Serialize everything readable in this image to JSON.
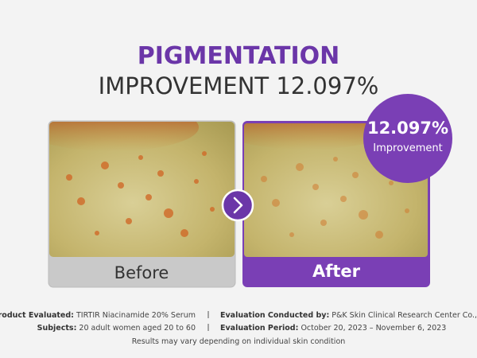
{
  "header": {
    "title": "PIGMENTATION",
    "subtitle": "IMPROVEMENT 12.097%"
  },
  "panels": [
    {
      "label": "Before"
    },
    {
      "label": "After"
    }
  ],
  "badge": {
    "value": "12.097%",
    "label": "Improvement"
  },
  "footer": {
    "rows": [
      [
        {
          "label": "Product Evaluated:",
          "text": "TIRTIR Niacinamide 20% Serum"
        },
        {
          "label": "Evaluation Conducted by:",
          "text": "P&K Skin Clinical Research Center Co., Ltd."
        }
      ],
      [
        {
          "label": "Subjects:",
          "text": "20 adult women aged 20 to 60"
        },
        {
          "label": "Evaluation Period:",
          "text": "October 20, 2023 – November 6, 2023"
        }
      ]
    ],
    "note": "Results may vary depending on individual skin condition"
  }
}
